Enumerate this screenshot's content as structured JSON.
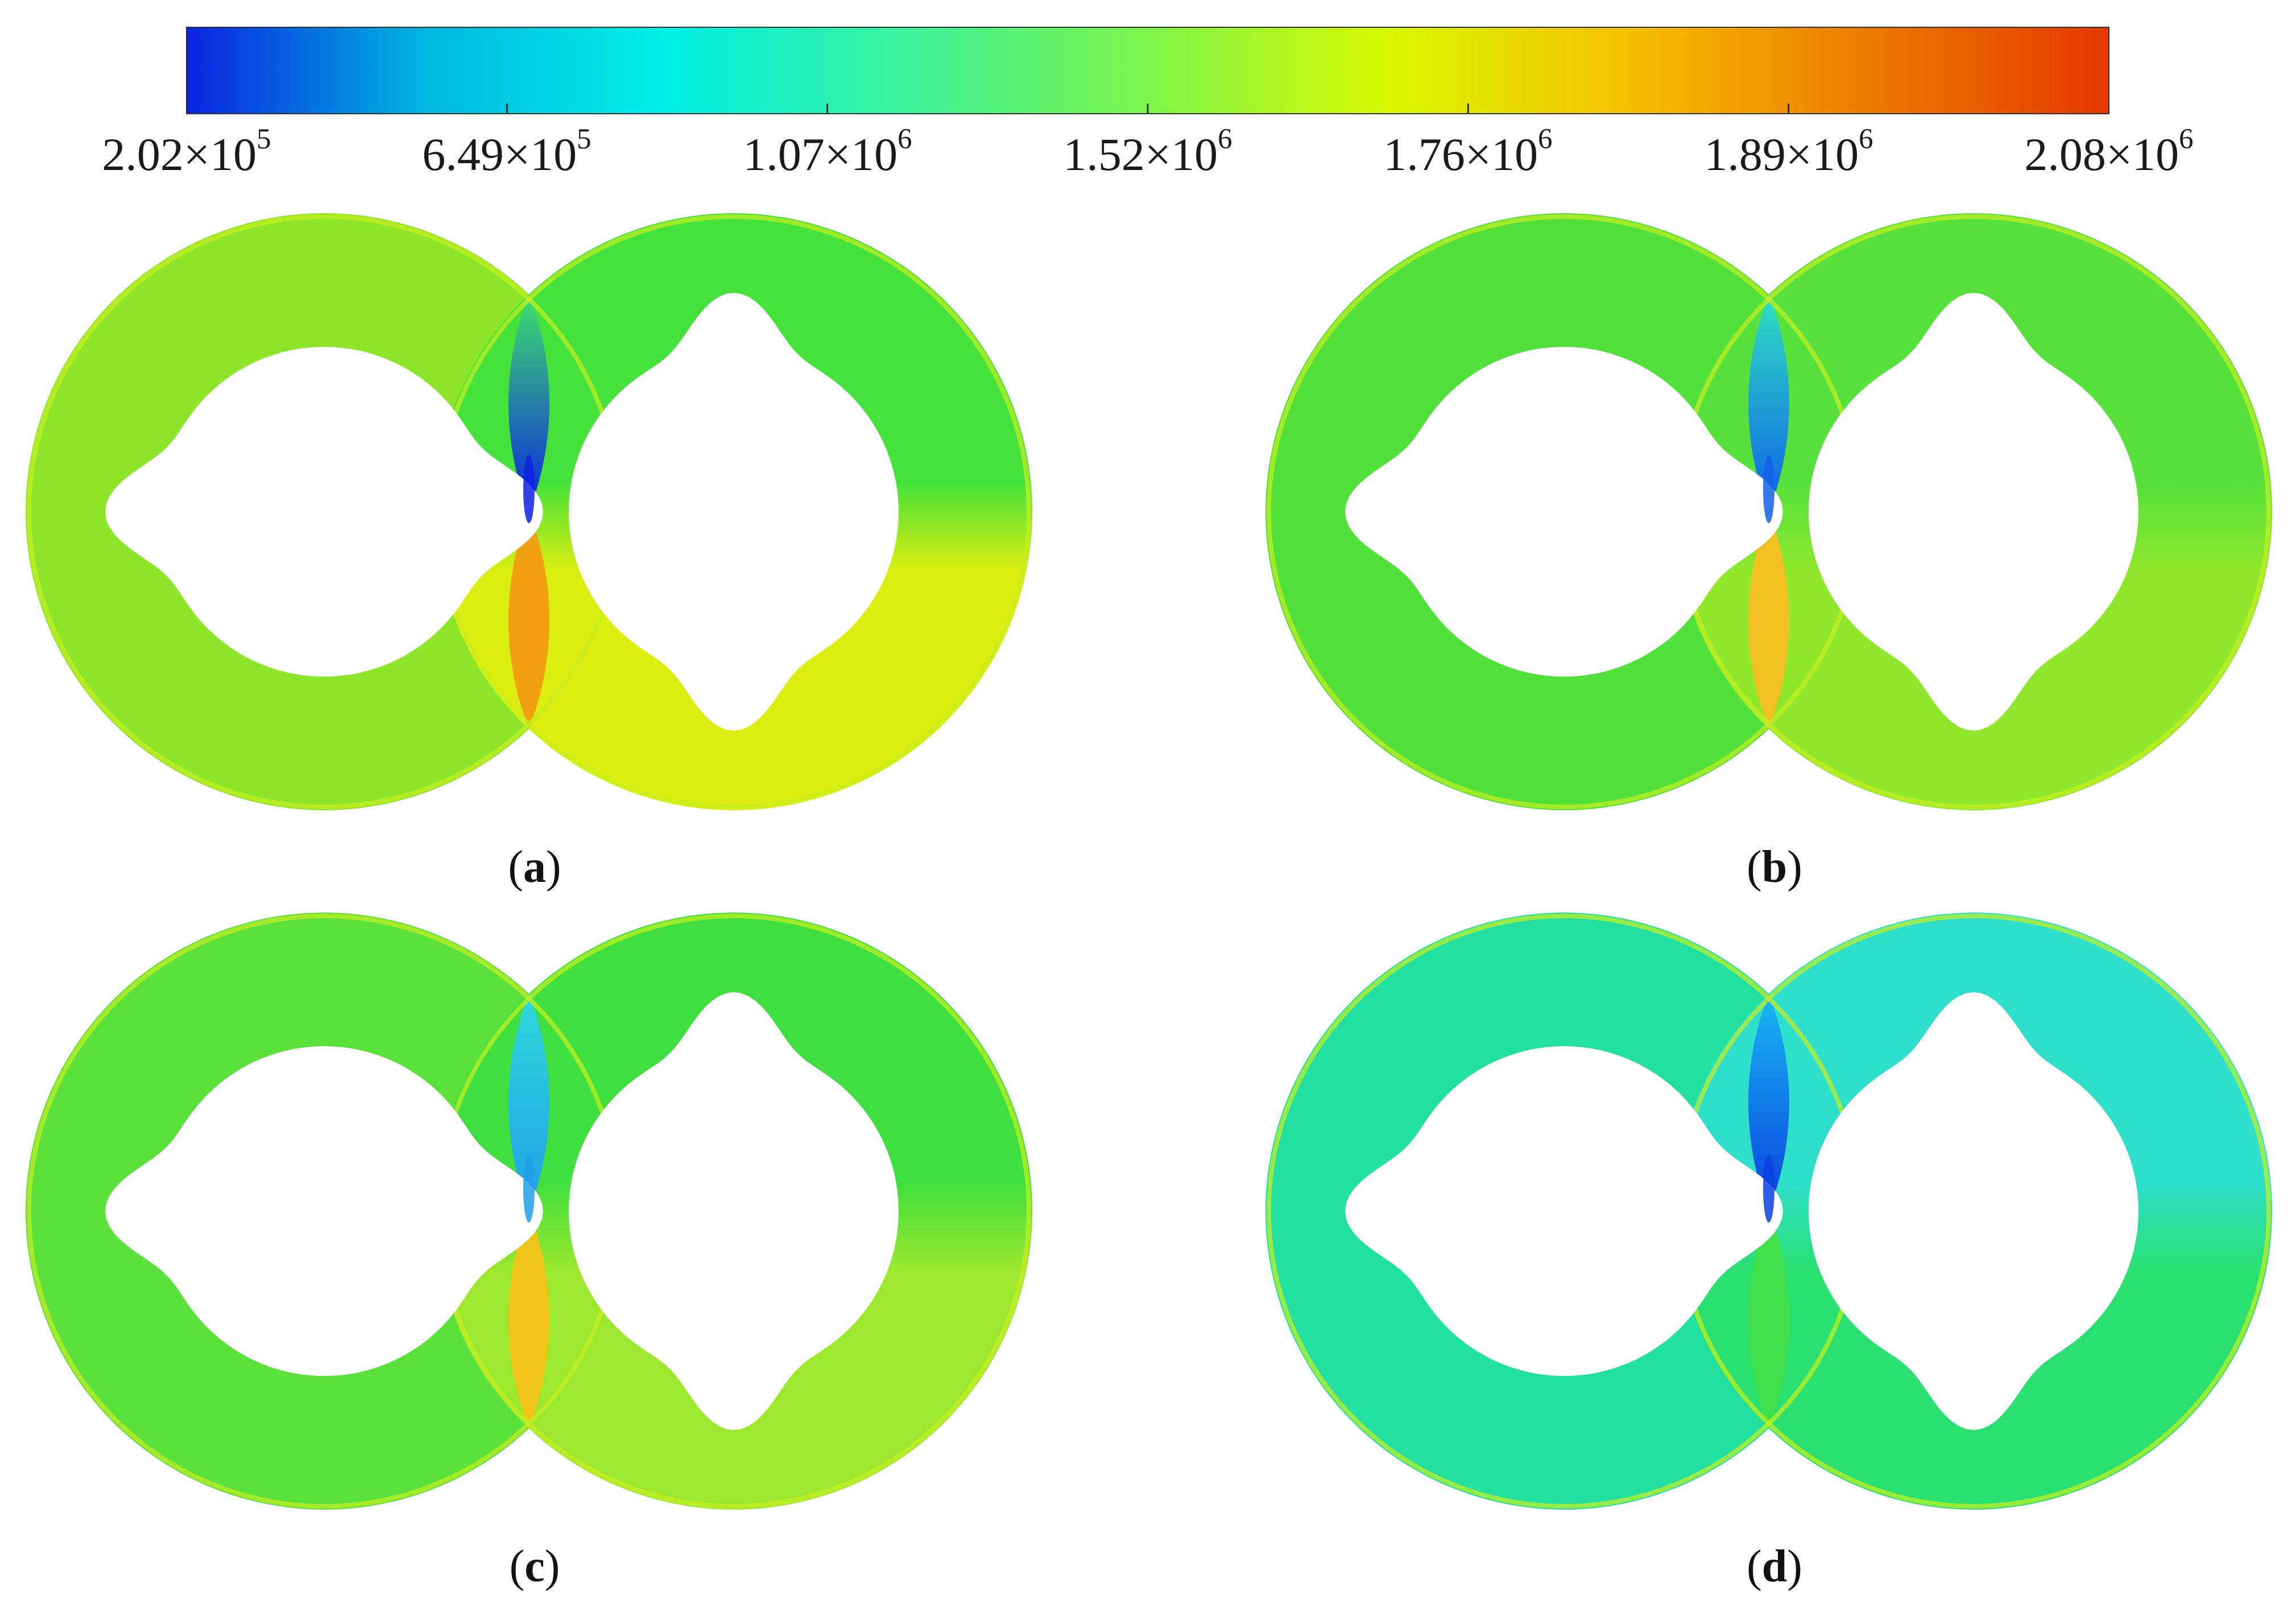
{
  "colorbar": {
    "ticks": [
      {
        "mantissa": "2.02",
        "times": "×10",
        "exp": "5"
      },
      {
        "mantissa": "6.49",
        "times": "×10",
        "exp": "5"
      },
      {
        "mantissa": "1.07",
        "times": "×10",
        "exp": "6"
      },
      {
        "mantissa": "1.52",
        "times": "×10",
        "exp": "6"
      },
      {
        "mantissa": "1.76",
        "times": "×10",
        "exp": "6"
      },
      {
        "mantissa": "1.89",
        "times": "×10",
        "exp": "6"
      },
      {
        "mantissa": "2.08",
        "times": "×10",
        "exp": "6"
      }
    ],
    "gradient": [
      "#0a22e0",
      "#00b8e0",
      "#00f0e6",
      "#3cf29a",
      "#7df54a",
      "#d8f800",
      "#f5c000",
      "#ec7a00",
      "#e43800"
    ]
  },
  "panels": [
    {
      "label": "a",
      "left_fill": "#8ee62a",
      "right_top_fill": "#44e23a",
      "right_bottom_fill": "#dcee10",
      "mesh_upper_fill": "#3fe06a",
      "mesh_lower_fill": "#f0a010",
      "hotspot": "#0a22e0"
    },
    {
      "label": "b",
      "left_fill": "#52e03a",
      "right_top_fill": "#56e13c",
      "right_bottom_fill": "#8fe82c",
      "mesh_upper_fill": "#2fe0c0",
      "mesh_lower_fill": "#f0c020",
      "hotspot": "#1060e8"
    },
    {
      "label": "c",
      "left_fill": "#5ae13c",
      "right_top_fill": "#3edf3e",
      "right_bottom_fill": "#9ce82e",
      "mesh_upper_fill": "#2fd8d8",
      "mesh_lower_fill": "#f0c418",
      "hotspot": "#20a0e8"
    },
    {
      "label": "d",
      "left_fill": "#22e0a0",
      "right_top_fill": "#2ee0cc",
      "right_bottom_fill": "#2ae070",
      "mesh_upper_fill": "#18b8f0",
      "mesh_lower_fill": "#40e04a",
      "hotspot": "#0a40e0"
    }
  ]
}
